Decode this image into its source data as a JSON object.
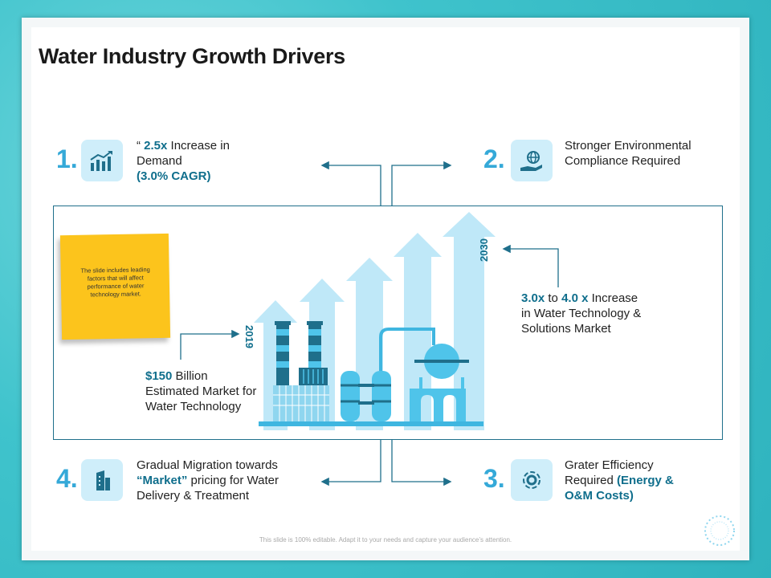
{
  "title": "Water Industry Growth Drivers",
  "drivers": {
    "d1": {
      "number": "1.",
      "pre": "“ ",
      "bold1": "2.5x",
      "text1": " Increase in Demand",
      "bold2": "(3.0% CAGR)"
    },
    "d2": {
      "number": "2.",
      "text": "Stronger Environmental Compliance Required"
    },
    "d3": {
      "number": "3.",
      "text": "Grater Efficiency Required ",
      "bold": "(Energy & O&M Costs)"
    },
    "d4": {
      "number": "4.",
      "text1": "Gradual Migration towards ",
      "bold": "“Market”",
      "text2": " pricing for Water Delivery & Treatment"
    }
  },
  "market_2019": {
    "bold": "$150",
    "text": " Billion Estimated Market for Water Technology",
    "year": "2019"
  },
  "market_2030": {
    "bold1": "3.0x",
    "mid": " to ",
    "bold2": "4.0 x",
    "text": " Increase in Water Technology & Solutions Market",
    "year": "2030"
  },
  "note": "The slide includes leading factors that will affect performance of water technology market.",
  "footer": "This slide is 100% editable. Adapt it to your needs and capture your audience’s attention.",
  "colors": {
    "accent": "#35a9d8",
    "dark": "#0f6e8c",
    "note": "#fcc41c",
    "arrow": "#bfe8f8"
  }
}
